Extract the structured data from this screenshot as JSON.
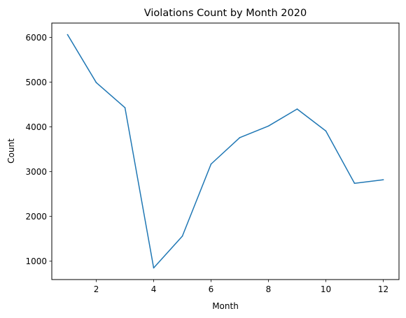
{
  "chart_data": {
    "type": "line",
    "title": "Violations Count by Month 2020",
    "xlabel": "Month",
    "ylabel": "Count",
    "x": [
      1,
      2,
      3,
      4,
      5,
      6,
      7,
      8,
      9,
      10,
      11,
      12
    ],
    "series": [
      {
        "values": [
          6060,
          4990,
          4430,
          850,
          1560,
          3170,
          3760,
          4020,
          4400,
          3910,
          2740,
          2820
        ],
        "color": "#1f77b4"
      }
    ],
    "xlim": [
      0.45,
      12.55
    ],
    "ylim": [
      590,
      6320
    ],
    "xticks": [
      2,
      4,
      6,
      8,
      10,
      12
    ],
    "yticks": [
      1000,
      2000,
      3000,
      4000,
      5000,
      6000
    ],
    "grid": false,
    "legend": false
  }
}
